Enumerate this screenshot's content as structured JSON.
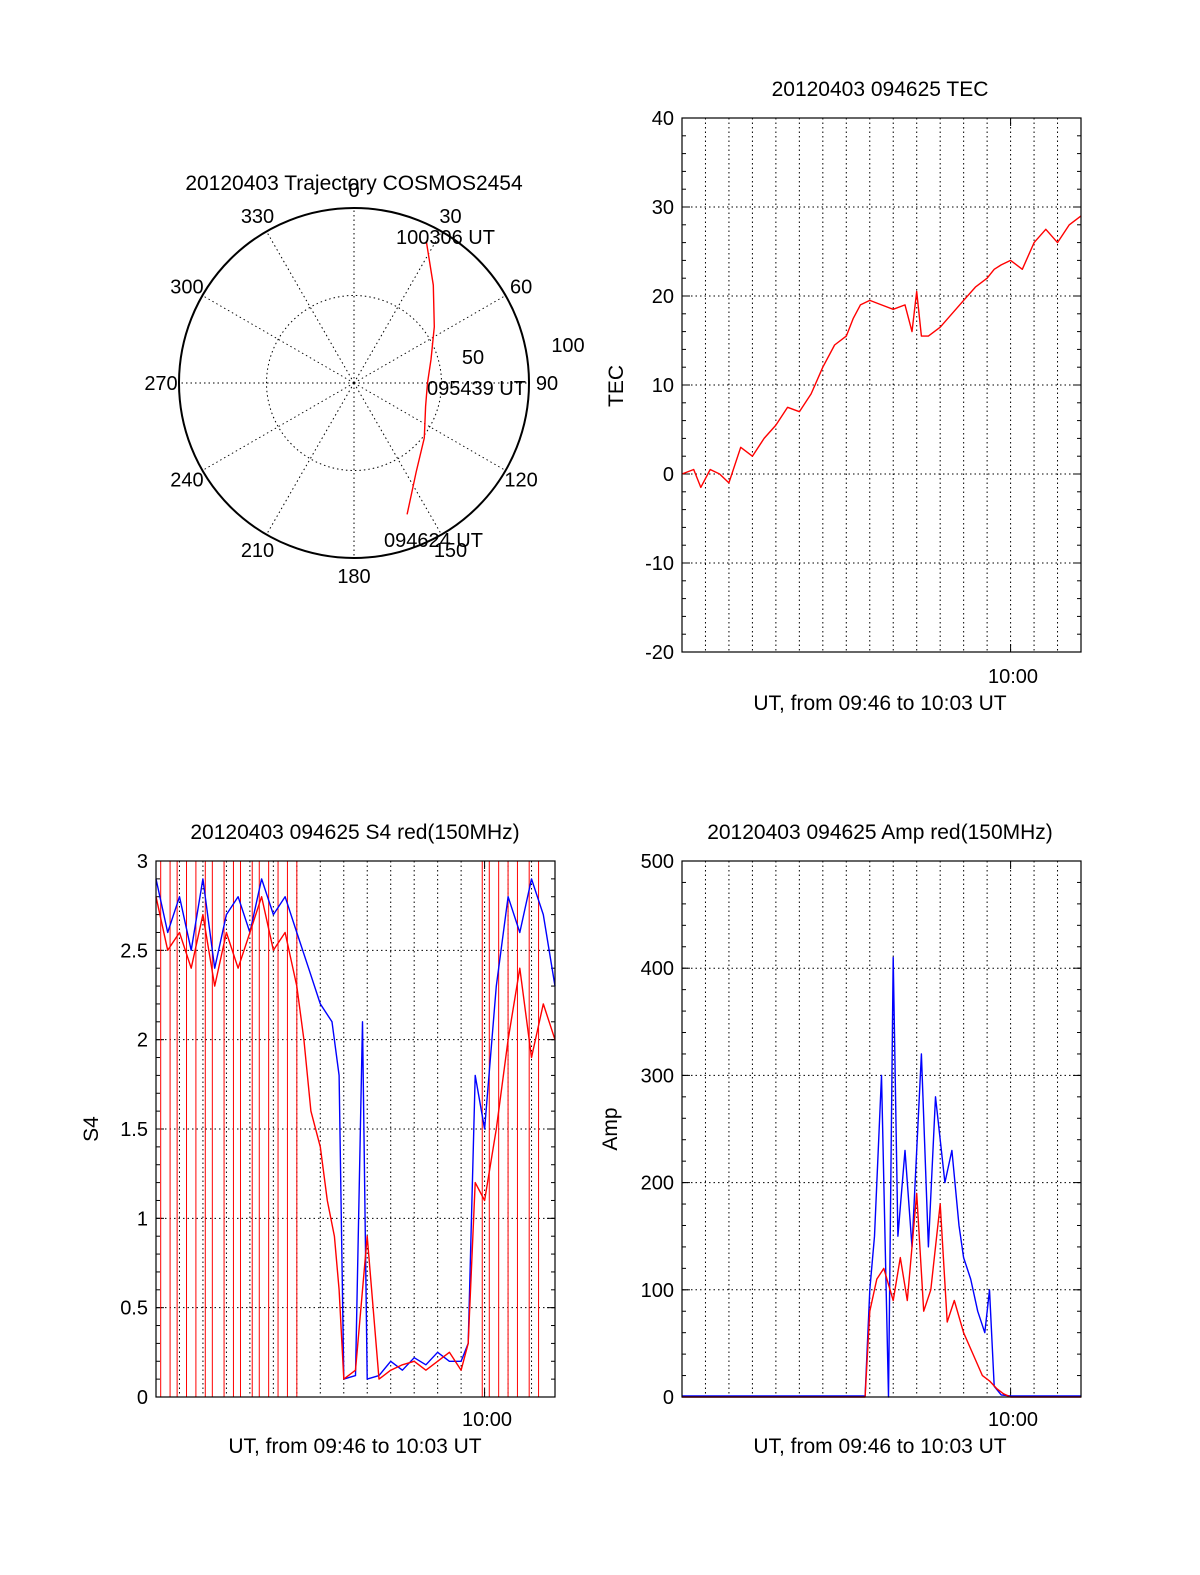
{
  "colors": {
    "red": "#ff0000",
    "blue": "#0000ff",
    "axis": "#000000"
  },
  "chart_data": [
    {
      "type": "polar",
      "title": "20120403 Trajectory COSMOS2454",
      "angle_labels": [
        "0",
        "30",
        "60",
        "90",
        "120",
        "150",
        "180",
        "210",
        "240",
        "270",
        "300",
        "330"
      ],
      "radial_labels": [
        "50",
        "100"
      ],
      "rlim": [
        0,
        100
      ],
      "grid": true,
      "series": [
        {
          "color": "red",
          "points": [
            {
              "az": 158,
              "r": 81
            },
            {
              "az": 145,
              "r": 62
            },
            {
              "az": 128,
              "r": 51
            },
            {
              "az": 108,
              "r": 43
            },
            {
              "az": 90,
              "r": 42
            },
            {
              "az": 73,
              "r": 46
            },
            {
              "az": 55,
              "r": 56
            },
            {
              "az": 39,
              "r": 72
            },
            {
              "az": 27,
              "r": 91
            }
          ]
        }
      ],
      "annotations": [
        "100306 UT",
        "095439 UT",
        "094624 UT"
      ]
    },
    {
      "type": "line",
      "title": "20120403 094625 TEC",
      "xlabel": "UT, from 09:46 to 10:03 UT",
      "ylabel": "TEC",
      "xlim": [
        0,
        17.0
      ],
      "ylim": [
        -20,
        40
      ],
      "yticks": [
        "-20",
        "-10",
        "0",
        "10",
        "20",
        "30",
        "40"
      ],
      "xtick_label": "10:00",
      "xtick_at": 14.0,
      "grid": true,
      "series": [
        {
          "color": "red",
          "x": [
            0.0,
            0.5,
            0.8,
            1.2,
            1.6,
            2.0,
            2.5,
            3.0,
            3.5,
            4.0,
            4.5,
            5.0,
            5.5,
            6.0,
            6.5,
            7.0,
            7.3,
            7.6,
            8.0,
            8.5,
            9.0,
            9.5,
            9.8,
            10.0,
            10.2,
            10.5,
            11.0,
            11.5,
            12.0,
            12.5,
            13.0,
            13.3,
            13.6,
            14.0,
            14.5,
            15.0,
            15.5,
            16.0,
            16.5,
            17.0
          ],
          "y": [
            0,
            0.5,
            -1.5,
            0.5,
            0,
            -1,
            3,
            2,
            4,
            5.5,
            7.5,
            7,
            9,
            12,
            14.5,
            15.5,
            17.5,
            19,
            19.5,
            19,
            18.5,
            19,
            16,
            20.5,
            15.5,
            15.5,
            16.5,
            18,
            19.5,
            21,
            22,
            23,
            23.5,
            24,
            23,
            26,
            27.5,
            26,
            28,
            29
          ]
        }
      ]
    },
    {
      "type": "line",
      "title": "20120403 094625 S4 red(150MHz)",
      "xlabel": "UT, from 09:46 to 10:03 UT",
      "ylabel": "S4",
      "xlim": [
        0,
        17.0
      ],
      "ylim": [
        0,
        3
      ],
      "yticks": [
        "0",
        "0.5",
        "1",
        "1.5",
        "2",
        "2.5",
        "3"
      ],
      "xtick_label": "10:00",
      "xtick_at": 14.0,
      "grid": true,
      "series": [
        {
          "color": "blue",
          "x": [
            0,
            0.5,
            1,
            1.5,
            2,
            2.5,
            3,
            3.5,
            4,
            4.5,
            5,
            5.5,
            6,
            6.5,
            7,
            7.5,
            7.8,
            8.0,
            8.5,
            8.8,
            9.0,
            9.5,
            10,
            10.5,
            11,
            11.5,
            12,
            12.5,
            13,
            13.3,
            13.6,
            14,
            14.5,
            15,
            15.5,
            16,
            16.5,
            17
          ],
          "y": [
            2.9,
            2.6,
            2.8,
            2.5,
            2.9,
            2.4,
            2.7,
            2.8,
            2.6,
            2.9,
            2.7,
            2.8,
            2.6,
            2.4,
            2.2,
            2.1,
            1.8,
            0.1,
            0.12,
            2.1,
            0.1,
            0.12,
            0.2,
            0.15,
            0.22,
            0.18,
            0.25,
            0.2,
            0.2,
            0.3,
            1.8,
            1.5,
            2.3,
            2.8,
            2.6,
            2.9,
            2.7,
            2.3
          ]
        },
        {
          "color": "red",
          "x": [
            0,
            0.5,
            1,
            1.5,
            2,
            2.5,
            3,
            3.5,
            4,
            4.5,
            5,
            5.5,
            6,
            6.3,
            6.6,
            7,
            7.3,
            7.6,
            7.8,
            8.0,
            8.5,
            9.0,
            9.5,
            10,
            10.5,
            11,
            11.5,
            12,
            12.5,
            13,
            13.3,
            13.6,
            14,
            14.5,
            15,
            15.5,
            16,
            16.5,
            17
          ],
          "y": [
            2.8,
            2.5,
            2.6,
            2.4,
            2.7,
            2.3,
            2.6,
            2.4,
            2.6,
            2.8,
            2.5,
            2.6,
            2.3,
            2.0,
            1.6,
            1.4,
            1.1,
            0.9,
            0.6,
            0.1,
            0.15,
            0.9,
            0.1,
            0.15,
            0.18,
            0.2,
            0.15,
            0.2,
            0.25,
            0.15,
            0.3,
            1.2,
            1.1,
            1.5,
            2.0,
            2.4,
            1.9,
            2.2,
            2.0
          ]
        }
      ],
      "dropout_spikes_x": [
        0.2,
        0.6,
        0.9,
        1.3,
        1.7,
        2.1,
        2.4,
        2.9,
        3.3,
        3.6,
        4.1,
        4.4,
        4.8,
        5.2,
        5.6,
        6.0,
        13.9,
        14.2,
        14.6,
        15.0,
        15.4,
        15.9,
        16.3
      ]
    },
    {
      "type": "line",
      "title": "20120403 094625 Amp red(150MHz)",
      "xlabel": "UT, from 09:46 to 10:03 UT",
      "ylabel": "Amp",
      "xlim": [
        0,
        17.0
      ],
      "ylim": [
        0,
        500
      ],
      "yticks": [
        "0",
        "100",
        "200",
        "300",
        "400",
        "500"
      ],
      "xtick_label": "10:00",
      "xtick_at": 14.0,
      "grid": true,
      "series": [
        {
          "color": "blue",
          "x": [
            0,
            7.8,
            8.0,
            8.2,
            8.5,
            8.8,
            9.0,
            9.2,
            9.5,
            9.8,
            10.2,
            10.5,
            10.8,
            11.2,
            11.5,
            11.8,
            12.0,
            12.3,
            12.6,
            12.9,
            13.1,
            13.3,
            13.6,
            14,
            17
          ],
          "y": [
            1,
            1,
            100,
            150,
            300,
            0,
            410,
            150,
            230,
            140,
            320,
            140,
            280,
            200,
            230,
            160,
            130,
            110,
            80,
            60,
            100,
            10,
            2,
            1,
            1
          ]
        },
        {
          "color": "red",
          "x": [
            0,
            7.8,
            8.0,
            8.3,
            8.6,
            9.0,
            9.3,
            9.6,
            10.0,
            10.3,
            10.6,
            11.0,
            11.3,
            11.6,
            12.0,
            12.4,
            12.8,
            13.1,
            13.4,
            13.7,
            14,
            17
          ],
          "y": [
            0,
            0,
            80,
            110,
            120,
            90,
            130,
            90,
            190,
            80,
            100,
            180,
            70,
            90,
            60,
            40,
            20,
            15,
            8,
            3,
            0,
            0
          ]
        }
      ]
    }
  ]
}
